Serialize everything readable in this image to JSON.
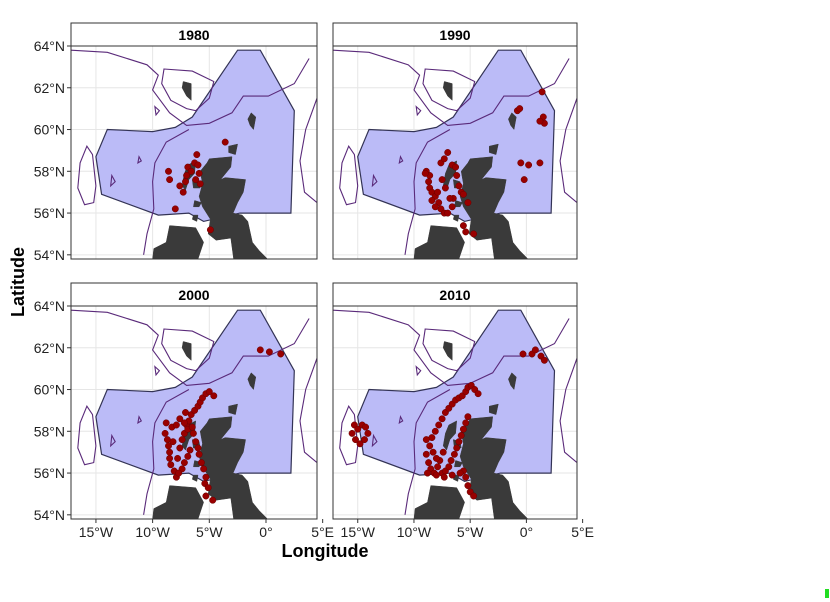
{
  "figure": {
    "xlabel": "Longitude",
    "ylabel": "Latitude"
  },
  "axes": {
    "lon_ticks": [
      {
        "value": -15,
        "label": "15°W"
      },
      {
        "value": -10,
        "label": "10°W"
      },
      {
        "value": -5,
        "label": "5°W"
      },
      {
        "value": 0,
        "label": "0°"
      },
      {
        "value": 5,
        "label": "5°E"
      }
    ],
    "lat_ticks": [
      {
        "value": 54,
        "label": "54°N"
      },
      {
        "value": 56,
        "label": "56°N"
      },
      {
        "value": 58,
        "label": "58°N"
      },
      {
        "value": 60,
        "label": "60°N"
      },
      {
        "value": 62,
        "label": "62°N"
      },
      {
        "value": 64,
        "label": "64°N"
      }
    ],
    "lon_range": [
      -17.2,
      4.5
    ],
    "lat_range": [
      53.8,
      64.0
    ]
  },
  "colors": {
    "study_area_fill": "#bbbbf7",
    "study_area_stroke": "#333355",
    "land": "#3a3a3a",
    "contour": "#5a2a7a",
    "points": "#990000",
    "strip_bg": "#ffffff",
    "grid": "#e6e6e6"
  },
  "panels": [
    {
      "title": "1980",
      "points": [
        [
          -8.6,
          58.0
        ],
        [
          -8.5,
          57.6
        ],
        [
          -8.0,
          56.2
        ],
        [
          -7.6,
          57.3
        ],
        [
          -7.3,
          57.0
        ],
        [
          -7.1,
          57.5
        ],
        [
          -6.9,
          58.2
        ],
        [
          -6.6,
          58.0
        ],
        [
          -6.3,
          58.4
        ],
        [
          -6.0,
          58.3
        ],
        [
          -5.9,
          57.9
        ],
        [
          -6.2,
          57.6
        ],
        [
          -5.8,
          57.4
        ],
        [
          -4.9,
          55.2
        ],
        [
          -3.6,
          59.4
        ],
        [
          -6.1,
          58.8
        ],
        [
          -7.0,
          57.8
        ]
      ]
    },
    {
      "title": "1990",
      "points": [
        [
          -8.9,
          58.0
        ],
        [
          -8.6,
          57.8
        ],
        [
          -8.7,
          57.5
        ],
        [
          -8.6,
          57.2
        ],
        [
          -8.4,
          57.0
        ],
        [
          -8.1,
          56.8
        ],
        [
          -7.8,
          56.5
        ],
        [
          -7.6,
          56.2
        ],
        [
          -7.3,
          56.0
        ],
        [
          -7.6,
          58.4
        ],
        [
          -7.3,
          58.6
        ],
        [
          -7.0,
          58.9
        ],
        [
          -6.6,
          58.3
        ],
        [
          -6.3,
          58.2
        ],
        [
          -6.2,
          57.8
        ],
        [
          -6.0,
          57.3
        ],
        [
          -5.8,
          57.0
        ],
        [
          -5.6,
          56.9
        ],
        [
          -5.2,
          56.5
        ],
        [
          -6.5,
          56.7
        ],
        [
          -6.6,
          56.3
        ],
        [
          -7.0,
          56.0
        ],
        [
          -5.6,
          55.4
        ],
        [
          -5.4,
          55.1
        ],
        [
          -4.7,
          55.0
        ],
        [
          -8.1,
          56.3
        ],
        [
          -7.9,
          57.0
        ],
        [
          -7.5,
          57.6
        ],
        [
          -7.2,
          57.2
        ],
        [
          -6.8,
          56.7
        ],
        [
          -0.5,
          58.4
        ],
        [
          0.2,
          58.3
        ],
        [
          1.2,
          58.4
        ],
        [
          -0.2,
          57.6
        ],
        [
          -0.8,
          60.9
        ],
        [
          -0.6,
          61.0
        ],
        [
          1.4,
          61.8
        ],
        [
          1.5,
          60.6
        ],
        [
          1.6,
          60.3
        ],
        [
          1.2,
          60.4
        ],
        [
          -9.0,
          57.9
        ],
        [
          -8.4,
          56.6
        ]
      ]
    },
    {
      "title": "2000",
      "points": [
        [
          -8.9,
          57.9
        ],
        [
          -8.7,
          57.6
        ],
        [
          -8.6,
          57.3
        ],
        [
          -8.5,
          57.0
        ],
        [
          -8.5,
          56.7
        ],
        [
          -8.4,
          56.4
        ],
        [
          -8.1,
          56.1
        ],
        [
          -7.9,
          55.8
        ],
        [
          -7.8,
          56.7
        ],
        [
          -7.6,
          57.2
        ],
        [
          -7.4,
          57.6
        ],
        [
          -7.2,
          57.9
        ],
        [
          -7.0,
          58.3
        ],
        [
          -6.8,
          58.5
        ],
        [
          -6.6,
          58.8
        ],
        [
          -6.3,
          59.0
        ],
        [
          -6.0,
          59.2
        ],
        [
          -5.8,
          59.4
        ],
        [
          -5.6,
          59.6
        ],
        [
          -5.3,
          59.8
        ],
        [
          -5.0,
          59.9
        ],
        [
          -4.6,
          59.7
        ],
        [
          -8.3,
          58.2
        ],
        [
          -8.8,
          58.4
        ],
        [
          -7.9,
          58.3
        ],
        [
          -7.6,
          58.6
        ],
        [
          -7.2,
          58.4
        ],
        [
          -6.9,
          58.1
        ],
        [
          -6.5,
          58.2
        ],
        [
          -6.4,
          57.9
        ],
        [
          -6.2,
          57.5
        ],
        [
          -6.0,
          57.2
        ],
        [
          -5.9,
          56.9
        ],
        [
          -5.7,
          56.5
        ],
        [
          -5.5,
          56.2
        ],
        [
          -5.3,
          55.8
        ],
        [
          -5.4,
          55.5
        ],
        [
          -5.1,
          55.3
        ],
        [
          -5.3,
          54.9
        ],
        [
          -4.7,
          54.7
        ],
        [
          -6.7,
          57.1
        ],
        [
          -6.9,
          56.8
        ],
        [
          -7.2,
          56.5
        ],
        [
          -7.4,
          56.2
        ],
        [
          -7.7,
          56.0
        ],
        [
          -0.5,
          61.9
        ],
        [
          0.3,
          61.8
        ],
        [
          1.3,
          61.7
        ],
        [
          -7.1,
          58.9
        ],
        [
          -8.2,
          57.5
        ]
      ]
    },
    {
      "title": "2010",
      "points": [
        [
          -15.3,
          58.3
        ],
        [
          -15.0,
          58.1
        ],
        [
          -14.6,
          58.3
        ],
        [
          -14.3,
          58.2
        ],
        [
          -14.1,
          57.9
        ],
        [
          -14.4,
          57.6
        ],
        [
          -14.8,
          57.4
        ],
        [
          -15.2,
          57.6
        ],
        [
          -15.5,
          57.9
        ],
        [
          -8.9,
          56.9
        ],
        [
          -8.7,
          56.5
        ],
        [
          -8.5,
          56.2
        ],
        [
          -8.2,
          56.0
        ],
        [
          -7.9,
          56.3
        ],
        [
          -7.7,
          56.6
        ],
        [
          -8.6,
          57.3
        ],
        [
          -8.4,
          57.7
        ],
        [
          -8.1,
          58.0
        ],
        [
          -7.8,
          58.3
        ],
        [
          -7.5,
          58.6
        ],
        [
          -7.2,
          58.9
        ],
        [
          -6.9,
          59.1
        ],
        [
          -6.6,
          59.3
        ],
        [
          -6.3,
          59.5
        ],
        [
          -6.0,
          59.6
        ],
        [
          -5.7,
          59.7
        ],
        [
          -5.4,
          59.9
        ],
        [
          -5.2,
          60.1
        ],
        [
          -4.9,
          60.2
        ],
        [
          -4.6,
          60.0
        ],
        [
          -4.3,
          59.8
        ],
        [
          -7.5,
          56.0
        ],
        [
          -7.2,
          56.1
        ],
        [
          -6.9,
          56.3
        ],
        [
          -6.7,
          56.6
        ],
        [
          -6.4,
          56.9
        ],
        [
          -6.2,
          57.2
        ],
        [
          -6.0,
          57.5
        ],
        [
          -5.8,
          57.8
        ],
        [
          -5.6,
          58.1
        ],
        [
          -5.4,
          58.4
        ],
        [
          -5.2,
          58.7
        ],
        [
          -5.6,
          56.1
        ],
        [
          -5.4,
          55.8
        ],
        [
          -5.2,
          55.4
        ],
        [
          -5.0,
          55.1
        ],
        [
          -4.7,
          54.9
        ],
        [
          -8.0,
          56.7
        ],
        [
          -7.4,
          57.0
        ],
        [
          -0.3,
          61.7
        ],
        [
          0.5,
          61.7
        ],
        [
          1.3,
          61.6
        ],
        [
          1.6,
          61.4
        ],
        [
          0.8,
          61.9
        ],
        [
          -8.9,
          57.6
        ],
        [
          -8.3,
          57.0
        ],
        [
          -8.8,
          56.0
        ],
        [
          -8.0,
          55.9
        ],
        [
          -7.3,
          55.8
        ],
        [
          -6.6,
          55.9
        ],
        [
          -5.9,
          56.0
        ]
      ]
    }
  ]
}
